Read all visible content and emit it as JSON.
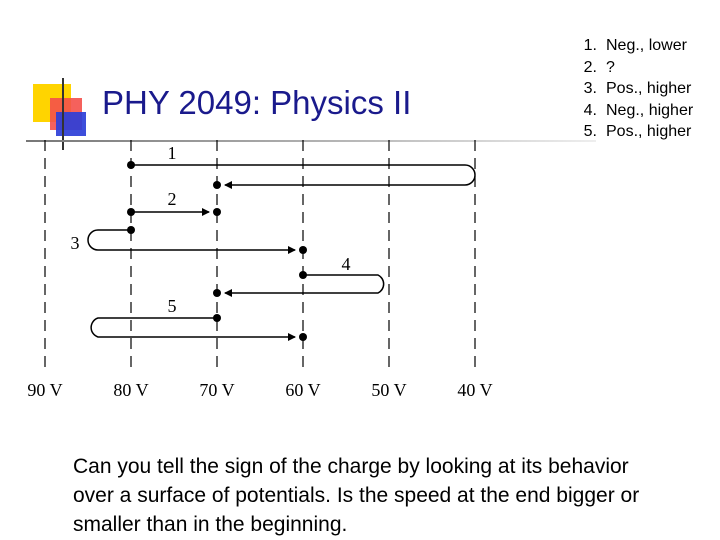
{
  "slide": {
    "title": "PHY 2049: Physics II",
    "answers": [
      {
        "num": "1.",
        "text": "Neg., lower"
      },
      {
        "num": "2.",
        "text": "?"
      },
      {
        "num": "3.",
        "text": "Pos., higher"
      },
      {
        "num": "4.",
        "text": "Neg., higher"
      },
      {
        "num": "5.",
        "text": "Pos., higher"
      }
    ],
    "caption": "Can you tell the sign of the charge by looking at its behavior over a surface of potentials.  Is the speed at the end bigger or smaller than in the beginning."
  },
  "diagram": {
    "potentials": [
      "90 V",
      "80 V",
      "70 V",
      "60 V",
      "50 V",
      "40 V"
    ],
    "path_labels": [
      "1",
      "2",
      "3",
      "4",
      "5"
    ]
  }
}
